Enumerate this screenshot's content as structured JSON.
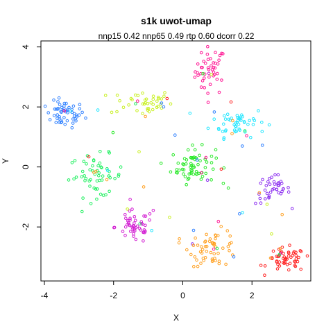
{
  "chart_data": {
    "type": "scatter",
    "title": "s1k uwot-umap",
    "subtitle": "nnp15 0.42 nnp65 0.49 rtp 0.60 dcorr 0.22",
    "xlabel": "X",
    "ylabel": "Y",
    "xlim": [
      -4.1,
      3.7
    ],
    "ylim": [
      -3.8,
      4.2
    ],
    "x_ticks": [
      "-4",
      "-2",
      "0",
      "2"
    ],
    "x_tick_values": [
      -4,
      -2,
      0,
      2
    ],
    "y_ticks": [
      "-2",
      "0",
      "2",
      "4"
    ],
    "y_tick_values": [
      -2,
      0,
      2,
      4
    ],
    "grid": false,
    "legend": "none",
    "marker": "open-circle",
    "clusters": [
      {
        "color": "#ff1493",
        "cx": 0.8,
        "cy": 3.2,
        "sx": 0.22,
        "sy": 0.4,
        "n": 45
      },
      {
        "color": "#2f80ff",
        "cx": -3.4,
        "cy": 1.75,
        "sx": 0.28,
        "sy": 0.22,
        "n": 55
      },
      {
        "color": "#c8f020",
        "cx": -1.2,
        "cy": 2.15,
        "sx": 0.45,
        "sy": 0.22,
        "n": 40
      },
      {
        "color": "#22e6ff",
        "cx": 1.6,
        "cy": 1.5,
        "sx": 0.4,
        "sy": 0.25,
        "n": 50
      },
      {
        "color": "#24e824",
        "cx": 0.3,
        "cy": 0.05,
        "sx": 0.32,
        "sy": 0.3,
        "n": 65
      },
      {
        "color": "#20f060",
        "cx": -2.5,
        "cy": -0.3,
        "sx": 0.4,
        "sy": 0.35,
        "n": 55
      },
      {
        "color": "#8a2bf0",
        "cx": 2.6,
        "cy": -0.75,
        "sx": 0.25,
        "sy": 0.25,
        "n": 40
      },
      {
        "color": "#d21ed2",
        "cx": -1.4,
        "cy": -2.0,
        "sx": 0.28,
        "sy": 0.28,
        "n": 50
      },
      {
        "color": "#ff2020",
        "cx": 3.0,
        "cy": -3.1,
        "sx": 0.28,
        "sy": 0.2,
        "n": 55
      },
      {
        "color": "#ffa020",
        "cx": 0.9,
        "cy": -2.7,
        "sx": 0.35,
        "sy": 0.3,
        "n": 55
      }
    ]
  }
}
